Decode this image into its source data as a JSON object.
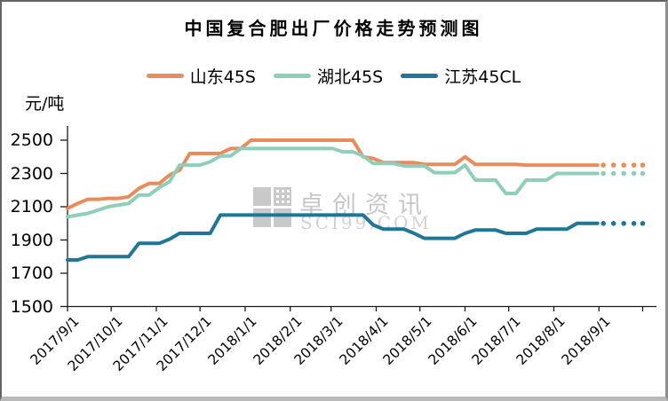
{
  "chart_data": {
    "type": "line",
    "title": "中国复合肥出厂价格走势预测图",
    "ylabel": "元/吨",
    "ylim": [
      1500,
      2500
    ],
    "yticks": [
      1500,
      1700,
      1900,
      2100,
      2300,
      2500
    ],
    "x_start": "2017/9/1",
    "x_interval": "weekly",
    "xtick_labels": [
      "2017/9/1",
      "2017/10/1",
      "2017/11/1",
      "2017/12/1",
      "2018/1/1",
      "2018/2/1",
      "2018/3/1",
      "2018/4/1",
      "2018/5/1",
      "2018/6/1",
      "2018/7/1",
      "2018/8/1",
      "2018/9/1"
    ],
    "legend_position": "top",
    "grid": false,
    "forecast_style": "dotted",
    "series": [
      {
        "name": "山东45S",
        "color": "#E98C5B",
        "values": [
          2090,
          2120,
          2145,
          2145,
          2150,
          2150,
          2160,
          2210,
          2240,
          2240,
          2290,
          2320,
          2420,
          2420,
          2420,
          2420,
          2450,
          2450,
          2500,
          2500,
          2500,
          2500,
          2500,
          2500,
          2500,
          2500,
          2500,
          2500,
          2500,
          2400,
          2390,
          2365,
          2365,
          2365,
          2365,
          2355,
          2355,
          2355,
          2355,
          2400,
          2355,
          2355,
          2355,
          2355,
          2355,
          2350,
          2350,
          2350,
          2350,
          2350,
          2350,
          2350,
          2350
        ],
        "forecast_values": [
          2350,
          2350,
          2350,
          2350,
          2350
        ]
      },
      {
        "name": "湖北45S",
        "color": "#8FCEBB",
        "values": [
          2040,
          2050,
          2060,
          2080,
          2100,
          2110,
          2120,
          2170,
          2170,
          2215,
          2250,
          2350,
          2350,
          2350,
          2370,
          2405,
          2405,
          2450,
          2450,
          2450,
          2450,
          2450,
          2450,
          2450,
          2450,
          2450,
          2450,
          2430,
          2430,
          2405,
          2360,
          2360,
          2360,
          2345,
          2345,
          2345,
          2305,
          2305,
          2305,
          2350,
          2260,
          2260,
          2260,
          2180,
          2180,
          2260,
          2260,
          2260,
          2300,
          2300,
          2300,
          2300,
          2300
        ],
        "forecast_values": [
          2300,
          2300,
          2300,
          2300,
          2300
        ]
      },
      {
        "name": "江苏45CL",
        "color": "#1F7795",
        "values": [
          1780,
          1780,
          1800,
          1800,
          1800,
          1800,
          1800,
          1880,
          1880,
          1880,
          1905,
          1940,
          1940,
          1940,
          1940,
          2050,
          2050,
          2050,
          2050,
          2050,
          2050,
          2050,
          2050,
          2050,
          2050,
          2050,
          2050,
          2050,
          2050,
          2050,
          1990,
          1965,
          1965,
          1965,
          1940,
          1910,
          1910,
          1910,
          1910,
          1940,
          1960,
          1960,
          1960,
          1940,
          1940,
          1940,
          1965,
          1965,
          1965,
          1965,
          2000,
          2000,
          2000
        ],
        "forecast_values": [
          2000,
          2000,
          2000,
          2000,
          2000
        ]
      }
    ]
  },
  "watermark": {
    "brand": "卓创资讯",
    "site": "SCI99.COM"
  }
}
